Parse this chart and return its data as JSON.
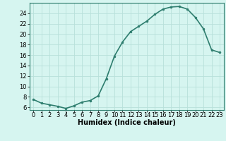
{
  "x": [
    0,
    1,
    2,
    3,
    4,
    5,
    6,
    7,
    8,
    9,
    10,
    11,
    12,
    13,
    14,
    15,
    16,
    17,
    18,
    19,
    20,
    21,
    22,
    23
  ],
  "y": [
    7.5,
    6.8,
    6.5,
    6.2,
    5.8,
    6.3,
    7.0,
    7.3,
    8.2,
    11.5,
    15.8,
    18.5,
    20.5,
    21.5,
    22.5,
    23.8,
    24.8,
    25.2,
    25.3,
    24.8,
    23.2,
    21.0,
    17.0,
    16.5
  ],
  "line_color": "#2e7d6e",
  "marker": "o",
  "marker_size": 2,
  "bg_color": "#d6f5f0",
  "grid_color": "#b8e0da",
  "xlabel": "Humidex (Indice chaleur)",
  "xlim": [
    -0.5,
    23.5
  ],
  "ylim": [
    5.5,
    26.0
  ],
  "yticks": [
    6,
    8,
    10,
    12,
    14,
    16,
    18,
    20,
    22,
    24
  ],
  "xticks": [
    0,
    1,
    2,
    3,
    4,
    5,
    6,
    7,
    8,
    9,
    10,
    11,
    12,
    13,
    14,
    15,
    16,
    17,
    18,
    19,
    20,
    21,
    22,
    23
  ],
  "xlabel_fontsize": 7,
  "tick_fontsize": 6,
  "line_width": 1.2
}
